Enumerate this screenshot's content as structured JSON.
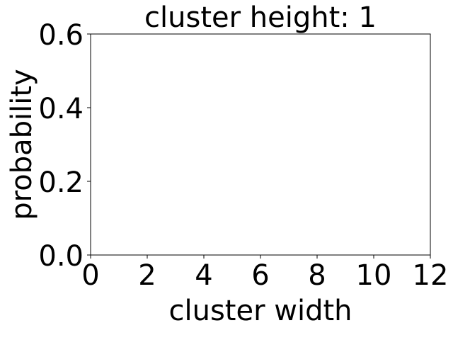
{
  "chart_data": {
    "type": "bar",
    "title": "cluster height: 1",
    "xlabel": "cluster width",
    "ylabel": "probability",
    "xlim": [
      0,
      12
    ],
    "ylim": [
      0,
      0.6
    ],
    "xticks": [
      0,
      2,
      4,
      6,
      8,
      10,
      12
    ],
    "xtick_labels": [
      "0",
      "2",
      "4",
      "6",
      "8",
      "10",
      "12"
    ],
    "yticks": [
      0.0,
      0.2,
      0.4,
      0.6
    ],
    "ytick_labels": [
      "0.0",
      "0.2",
      "0.4",
      "0.6"
    ],
    "grid": false,
    "x": [],
    "values": []
  }
}
